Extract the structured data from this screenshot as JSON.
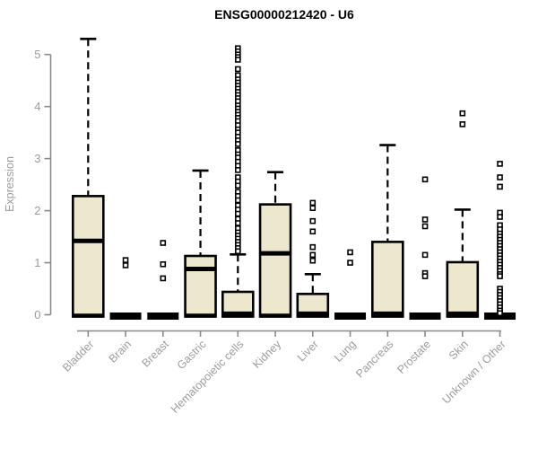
{
  "page": {
    "title_label": "ENSG00000212420 - U6"
  },
  "chart_data": {
    "type": "boxplot",
    "title": "ENSG00000212420 - U6",
    "xlabel": "",
    "ylabel": "Expression",
    "ylim": [
      0,
      5.4
    ],
    "yticks": [
      "0",
      "1",
      "2",
      "3",
      "4",
      "5"
    ],
    "grid": false,
    "legend_position": "none",
    "colors": {
      "box_fill": "#EDE8CD",
      "box_border": "#000000",
      "median": "#000000",
      "whisker": "#000000",
      "outlier": "#000000",
      "axis": "#8A8A8A",
      "tick_text": "#9C9C9C",
      "title_text": "#000000",
      "background": "#FFFFFF"
    },
    "categories": [
      "Bladder",
      "Brain",
      "Breast",
      "Gastric",
      "Hematopoietic cells",
      "Kidney",
      "Liver",
      "Lung",
      "Pancreas",
      "Prostate",
      "Skin",
      "Unknown / Other"
    ],
    "boxes": [
      {
        "category": "Bladder",
        "collapsed": false,
        "q1": 0,
        "median": 1.42,
        "q3": 2.28,
        "whisker_low": 0,
        "whisker_high": 5.3,
        "outliers": []
      },
      {
        "category": "Brain",
        "collapsed": true,
        "q1": 0,
        "median": 0.02,
        "q3": 0.04,
        "whisker_low": 0,
        "whisker_high": 0.04,
        "outliers": [
          1.05,
          0.95
        ]
      },
      {
        "category": "Breast",
        "collapsed": true,
        "q1": 0,
        "median": 0.02,
        "q3": 0.04,
        "whisker_low": 0,
        "whisker_high": 0.04,
        "outliers": [
          1.38,
          0.97,
          0.7
        ]
      },
      {
        "category": "Gastric",
        "collapsed": false,
        "q1": 0,
        "median": 0.88,
        "q3": 1.13,
        "whisker_low": 0,
        "whisker_high": 2.77,
        "outliers": []
      },
      {
        "category": "Hematopoietic cells",
        "collapsed": false,
        "q1": 0,
        "median": 0.02,
        "q3": 0.44,
        "whisker_low": 0,
        "whisker_high": 1.16,
        "outliers": [
          5.12,
          5.06,
          5.0,
          4.95,
          4.9,
          4.72,
          4.6,
          4.52,
          4.46,
          4.4,
          4.34,
          4.28,
          4.22,
          4.16,
          4.1,
          4.02,
          3.96,
          3.9,
          3.84,
          3.78,
          3.72,
          3.64,
          3.56,
          3.5,
          3.42,
          3.35,
          3.28,
          3.16,
          3.08,
          3.02,
          2.94,
          2.86,
          2.78,
          2.64,
          2.56,
          2.48,
          2.36,
          2.28,
          2.2,
          2.1,
          2.02,
          1.94,
          1.84,
          1.76,
          1.66,
          1.58,
          1.52,
          1.46,
          1.4,
          1.34,
          1.28,
          1.22
        ]
      },
      {
        "category": "Kidney",
        "collapsed": false,
        "q1": 0,
        "median": 1.18,
        "q3": 2.12,
        "whisker_low": 0,
        "whisker_high": 2.74,
        "outliers": []
      },
      {
        "category": "Liver",
        "collapsed": false,
        "q1": 0,
        "median": 0.02,
        "q3": 0.4,
        "whisker_low": 0,
        "whisker_high": 0.78,
        "outliers": [
          2.15,
          2.05,
          1.8,
          1.6,
          1.3,
          1.15,
          1.04
        ]
      },
      {
        "category": "Lung",
        "collapsed": true,
        "q1": 0,
        "median": 0.02,
        "q3": 0.04,
        "whisker_low": 0,
        "whisker_high": 0.04,
        "outliers": [
          1.2,
          1.0
        ]
      },
      {
        "category": "Pancreas",
        "collapsed": false,
        "q1": 0,
        "median": 0.02,
        "q3": 1.4,
        "whisker_low": 0,
        "whisker_high": 3.26,
        "outliers": []
      },
      {
        "category": "Prostate",
        "collapsed": true,
        "q1": 0,
        "median": 0.02,
        "q3": 0.04,
        "whisker_low": 0,
        "whisker_high": 0.04,
        "outliers": [
          2.6,
          1.83,
          1.7,
          1.15,
          0.8,
          0.74
        ]
      },
      {
        "category": "Skin",
        "collapsed": false,
        "q1": 0,
        "median": 0.02,
        "q3": 1.01,
        "whisker_low": 0,
        "whisker_high": 2.02,
        "outliers": [
          3.87,
          3.66
        ]
      },
      {
        "category": "Unknown / Other",
        "collapsed": true,
        "q1": 0,
        "median": 0.02,
        "q3": 0.04,
        "whisker_low": 0,
        "whisker_high": 0.04,
        "outliers": [
          2.9,
          2.64,
          2.46,
          1.96,
          1.88,
          1.72,
          1.64,
          1.56,
          1.5,
          1.44,
          1.38,
          1.32,
          1.26,
          1.2,
          1.14,
          1.08,
          1.02,
          0.96,
          0.9,
          0.84,
          0.78,
          0.74,
          0.5,
          0.44,
          0.38,
          0.32,
          0.26,
          0.2,
          0.14,
          0.08,
          0.03
        ]
      }
    ]
  }
}
